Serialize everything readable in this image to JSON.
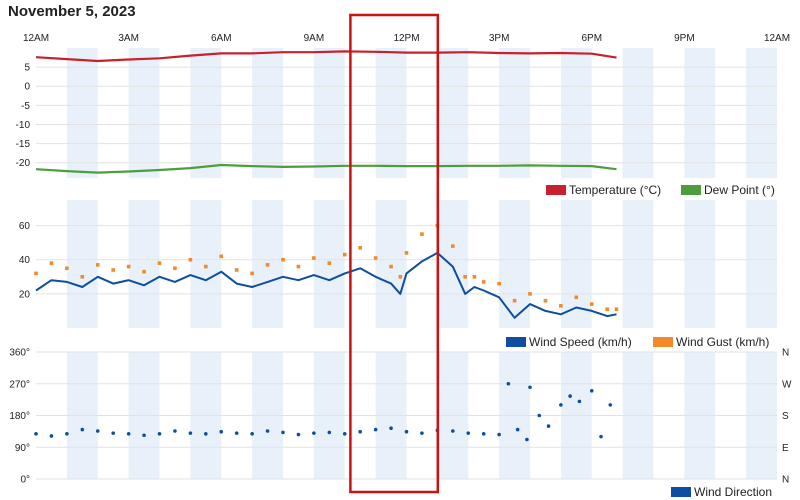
{
  "page": {
    "title": "November 5, 2023"
  },
  "time_axis": {
    "labels": [
      "12AM",
      "3AM",
      "6AM",
      "9AM",
      "12PM",
      "3PM",
      "6PM",
      "9PM",
      "12AM"
    ]
  },
  "colors": {
    "temperature": "#c8202c",
    "dew_point": "#4c9e3c",
    "wind_speed": "#0d4f9e",
    "wind_gust": "#f08a2c",
    "wind_direction": "#0d4f9e",
    "shade": "#e8f1fa",
    "highlight": "#cc1111"
  },
  "selection": {
    "start_hour": 10.2,
    "end_hour": 13.0
  },
  "chart_data": [
    {
      "type": "line",
      "x_unit": "hour",
      "xlim": [
        0,
        24
      ],
      "ylim": [
        -24,
        10
      ],
      "y_ticks": [
        "5",
        "0",
        "-5",
        "-10",
        "-15",
        "-20"
      ],
      "grid": true,
      "legend_position": "bottom-right",
      "series": [
        {
          "name": "Temperature (°C)",
          "x": [
            0,
            1,
            2,
            3,
            4,
            5,
            6,
            7,
            8,
            9,
            10,
            11,
            12,
            13,
            14,
            15,
            16,
            17,
            18,
            18.8
          ],
          "y": [
            7.6,
            7.1,
            6.6,
            7.0,
            7.3,
            8.0,
            8.6,
            8.6,
            8.9,
            8.9,
            9.1,
            9.0,
            8.8,
            8.8,
            8.9,
            8.7,
            8.6,
            8.7,
            8.5,
            7.5
          ]
        },
        {
          "name": "Dew Point (°)",
          "x": [
            0,
            1,
            2,
            3,
            4,
            5,
            6,
            7,
            8,
            9,
            10,
            11,
            12,
            13,
            14,
            15,
            16,
            17,
            18,
            18.8
          ],
          "y": [
            -21.7,
            -22.2,
            -22.6,
            -22.3,
            -21.9,
            -21.4,
            -20.6,
            -20.9,
            -21.1,
            -21.0,
            -20.8,
            -20.8,
            -20.9,
            -20.9,
            -20.8,
            -20.8,
            -20.7,
            -20.8,
            -20.9,
            -21.7
          ]
        }
      ]
    },
    {
      "type": "line",
      "x_unit": "hour",
      "xlim": [
        0,
        24
      ],
      "ylim": [
        0,
        75
      ],
      "y_ticks": [
        "20",
        "40",
        "60"
      ],
      "grid": true,
      "legend_position": "bottom-right",
      "series": [
        {
          "name": "Wind Speed (km/h)",
          "style": "line",
          "x": [
            0,
            0.5,
            1,
            1.5,
            2,
            2.5,
            3,
            3.5,
            4,
            4.5,
            5,
            5.5,
            6,
            6.5,
            7,
            7.5,
            8,
            8.5,
            9,
            9.5,
            10,
            10.5,
            11,
            11.5,
            11.8,
            12,
            12.5,
            13,
            13.5,
            13.9,
            14.2,
            14.5,
            15,
            15.5,
            16,
            16.5,
            17,
            17.5,
            18,
            18.5,
            18.8
          ],
          "y": [
            22,
            28,
            27,
            24,
            30,
            26,
            28,
            25,
            30,
            27,
            31,
            28,
            33,
            26,
            24,
            27,
            30,
            28,
            31,
            28,
            32,
            35,
            30,
            26,
            20,
            32,
            39,
            44,
            36,
            20,
            24,
            22,
            18,
            6,
            14,
            10,
            8,
            12,
            10,
            7,
            8
          ]
        },
        {
          "name": "Wind Gust (km/h)",
          "style": "points",
          "x": [
            0,
            0.5,
            1,
            1.5,
            2,
            2.5,
            3,
            3.5,
            4,
            4.5,
            5,
            5.5,
            6,
            6.5,
            7,
            7.5,
            8,
            8.5,
            9,
            9.5,
            10,
            10.5,
            11,
            11.5,
            11.8,
            12,
            12.5,
            13,
            13.5,
            13.9,
            14.2,
            14.5,
            15,
            15.5,
            16,
            16.5,
            17,
            17.5,
            18,
            18.5,
            18.8
          ],
          "y": [
            32,
            38,
            35,
            30,
            37,
            34,
            36,
            33,
            38,
            35,
            40,
            36,
            42,
            34,
            32,
            37,
            40,
            36,
            41,
            38,
            43,
            47,
            41,
            36,
            30,
            44,
            55,
            60,
            48,
            30,
            30,
            27,
            26,
            16,
            20,
            16,
            13,
            18,
            14,
            11,
            11
          ]
        }
      ]
    },
    {
      "type": "scatter",
      "x_unit": "hour",
      "xlim": [
        0,
        24
      ],
      "ylim": [
        0,
        360
      ],
      "y_ticks_left": [
        "360°",
        "270°",
        "180°",
        "90°",
        "0°"
      ],
      "y_ticks_right": [
        "N",
        "W",
        "S",
        "E",
        "N"
      ],
      "grid": true,
      "legend_position": "bottom-right",
      "series": [
        {
          "name": "Wind Direction",
          "x": [
            0,
            0.5,
            1,
            1.5,
            2,
            2.5,
            3,
            3.5,
            4,
            4.5,
            5,
            5.5,
            6,
            6.5,
            7,
            7.5,
            8,
            8.5,
            9,
            9.5,
            10,
            10.5,
            11,
            11.5,
            12,
            12.5,
            13,
            13.5,
            14,
            14.5,
            15,
            15.3,
            15.6,
            15.9,
            16,
            16.3,
            16.6,
            17,
            17.3,
            17.6,
            18,
            18.3,
            18.6
          ],
          "y": [
            128,
            122,
            128,
            140,
            136,
            130,
            128,
            124,
            128,
            136,
            130,
            128,
            134,
            130,
            128,
            136,
            132,
            126,
            130,
            132,
            128,
            134,
            140,
            144,
            134,
            130,
            138,
            136,
            130,
            128,
            126,
            270,
            140,
            112,
            260,
            180,
            150,
            210,
            235,
            220,
            250,
            120,
            210
          ]
        }
      ]
    }
  ],
  "legends": {
    "temp": {
      "temperature": "Temperature (°C)",
      "dew_point": "Dew Point (°)"
    },
    "wind": {
      "speed": "Wind Speed (km/h)",
      "gust": "Wind Gust (km/h)"
    },
    "dir": {
      "direction": "Wind Direction"
    }
  }
}
